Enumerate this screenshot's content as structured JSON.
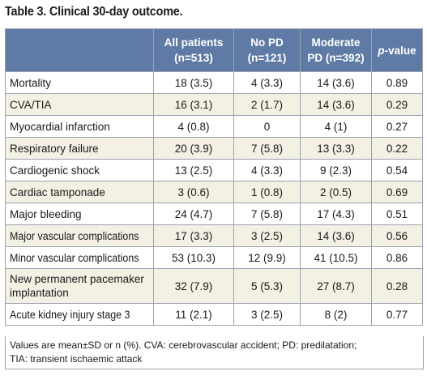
{
  "title": "Table 3. Clinical 30-day outcome.",
  "headers": {
    "col1": "",
    "col2_line1": "All patients",
    "col2_line2": "(n=513)",
    "col3_line1": "No PD",
    "col3_line2": "(n=121)",
    "col4_line1": "Moderate",
    "col4_line2": "PD (n=392)",
    "col5_italic": "p",
    "col5_rest": "-value"
  },
  "rows": [
    {
      "label": "Mortality",
      "all": "18 (3.5)",
      "nopd": "4 (3.3)",
      "mod": "14 (3.6)",
      "p": "0.89"
    },
    {
      "label": "CVA/TIA",
      "all": "16 (3.1)",
      "nopd": "2 (1.7)",
      "mod": "14 (3.6)",
      "p": "0.29"
    },
    {
      "label": "Myocardial infarction",
      "all": "4 (0.8)",
      "nopd": "0",
      "mod": "4 (1)",
      "p": "0.27"
    },
    {
      "label": "Respiratory failure",
      "all": "20 (3.9)",
      "nopd": "7 (5.8)",
      "mod": "13 (3.3)",
      "p": "0.22"
    },
    {
      "label": "Cardiogenic shock",
      "all": "13 (2.5)",
      "nopd": "4 (3.3)",
      "mod": "9 (2.3)",
      "p": "0.54"
    },
    {
      "label": "Cardiac tamponade",
      "all": "3 (0.6)",
      "nopd": "1 (0.8)",
      "mod": "2 (0.5)",
      "p": "0.69"
    },
    {
      "label": "Major bleeding",
      "all": "24 (4.7)",
      "nopd": "7 (5.8)",
      "mod": "17 (4.3)",
      "p": "0.51"
    },
    {
      "label": "Major vascular complications",
      "all": "17 (3.3)",
      "nopd": "3 (2.5)",
      "mod": "14 (3.6)",
      "p": "0.56"
    },
    {
      "label": "Minor vascular complications",
      "all": "53 (10.3)",
      "nopd": "12 (9.9)",
      "mod": "41 (10.5)",
      "p": "0.86"
    },
    {
      "label_line1": "New permanent pacemaker",
      "label_line2": "implantation",
      "all": "32 (7.9)",
      "nopd": "5 (5.3)",
      "mod": "27 (8.7)",
      "p": "0.28"
    },
    {
      "label": "Acute kidney injury stage 3",
      "all": "11 (2.1)",
      "nopd": "3 (2.5)",
      "mod": "8 (2)",
      "p": "0.77"
    }
  ],
  "footnote": {
    "line1": "Values are mean±SD or n (%). CVA: cerebrovascular accident; PD: predilatation;",
    "line2": "TIA: transient ischaemic attack"
  }
}
